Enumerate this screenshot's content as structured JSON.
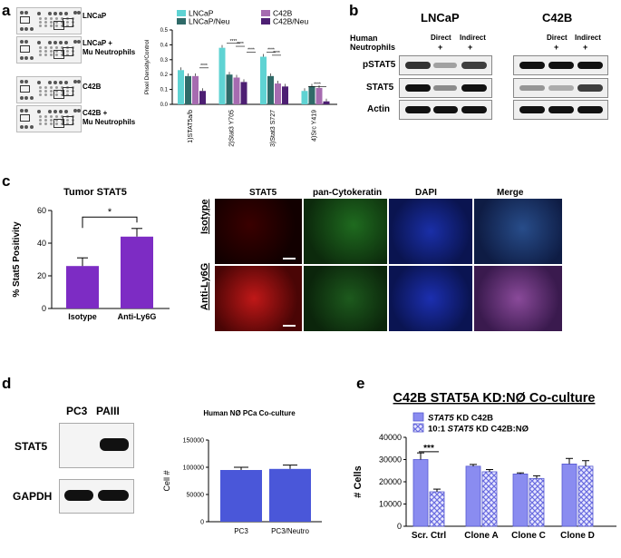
{
  "panels": {
    "a": "a",
    "b": "b",
    "c": "c",
    "d": "d",
    "e": "e"
  },
  "a": {
    "array_labels": [
      "LNCaP",
      "LNCaP +\nMu Neutrophils",
      "C42B",
      "C42B +\nMu Neutrophils"
    ],
    "chart_data": {
      "type": "bar",
      "ylabel": "Pixel Density/Control",
      "ylim": [
        0,
        0.5
      ],
      "yticks": [
        "0.0",
        "0.1",
        "0.2",
        "0.3",
        "0.4",
        "0.5"
      ],
      "categories": [
        "1)STAT5a/b",
        "2)Stat3 Y705",
        "3)Stat3 S727",
        "4)Src Y419"
      ],
      "series": [
        {
          "name": "LNCaP",
          "color": "#5fd3d3",
          "values": [
            0.23,
            0.38,
            0.32,
            0.09
          ]
        },
        {
          "name": "LNCaP/Neu",
          "color": "#2f6a68",
          "values": [
            0.19,
            0.2,
            0.19,
            0.12
          ]
        },
        {
          "name": "C42B",
          "color": "#a66bb0",
          "values": [
            0.19,
            0.18,
            0.14,
            0.11
          ]
        },
        {
          "name": "C42B/Neu",
          "color": "#4d1f73",
          "values": [
            0.09,
            0.15,
            0.12,
            0.02
          ]
        }
      ],
      "significance": [
        "****",
        "****",
        "****",
        "****",
        "****",
        "****",
        "****"
      ]
    }
  },
  "b": {
    "title_left": "LNCaP",
    "title_right": "C42B",
    "human_label": "Human",
    "neut_label": "Neutrophils",
    "direct": "Direct",
    "indirect": "Indirect",
    "plus": "+",
    "rows": [
      "pSTAT5",
      "STAT5",
      "Actin"
    ]
  },
  "c": {
    "chart_data": {
      "type": "bar",
      "title": "Tumor STAT5",
      "ylabel": "% Stat5 Positivity",
      "ylim": [
        0,
        60
      ],
      "yticks": [
        "0",
        "20",
        "40",
        "60"
      ],
      "categories": [
        "Isotype",
        "Anti-Ly6G"
      ],
      "values": [
        26,
        44
      ],
      "errors": [
        5,
        5
      ],
      "color": "#7d2cc4",
      "significance": "*"
    },
    "columns": [
      "STAT5",
      "pan-Cytokeratin",
      "DAPI",
      "Merge"
    ],
    "rows": [
      "Isotype",
      "Anti-Ly6G"
    ]
  },
  "d": {
    "lanes": [
      "PC3",
      "PAIII"
    ],
    "rows": [
      "STAT5",
      "GAPDH"
    ],
    "chart_data": {
      "type": "bar",
      "title": "Human NØ PCa Co-culture",
      "ylabel": "Cell #",
      "ylim": [
        0,
        150000
      ],
      "yticks": [
        "0",
        "50000",
        "100000",
        "150000"
      ],
      "categories": [
        "PC3",
        "PC3/Neutro"
      ],
      "values": [
        95000,
        97000
      ],
      "errors": [
        5000,
        7000
      ],
      "color": "#4a57d9"
    }
  },
  "e": {
    "chart_data": {
      "type": "bar",
      "title": "C42B STAT5A KD:NØ Co-culture",
      "ylabel": "# Cells",
      "ylim": [
        0,
        40000
      ],
      "yticks": [
        "0",
        "10000",
        "20000",
        "30000",
        "40000"
      ],
      "categories": [
        "Scr. Ctrl",
        "Clone A",
        "Clone C",
        "Clone D"
      ],
      "series": [
        {
          "name_prefix": "",
          "name_italic": "STAT5",
          "name_suffix": " KD C42B",
          "color": "#8a8cf0",
          "values": [
            30000,
            27000,
            23500,
            28000
          ],
          "errors": [
            3000,
            800,
            500,
            2500
          ]
        },
        {
          "name_prefix": "10:1 ",
          "name_italic": "STAT5",
          "name_suffix": " KD C42B:NØ",
          "color": "#8a8cf0",
          "pattern": "check",
          "values": [
            15500,
            24500,
            21500,
            27000
          ],
          "errors": [
            1200,
            1000,
            1200,
            2500
          ]
        }
      ],
      "significance": "***"
    }
  }
}
